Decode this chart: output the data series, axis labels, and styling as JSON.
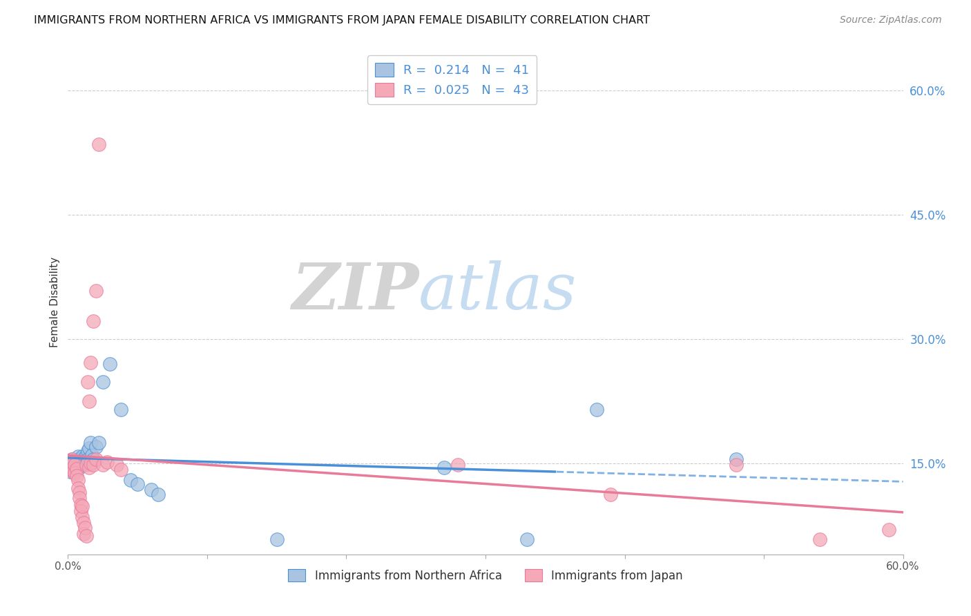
{
  "title": "IMMIGRANTS FROM NORTHERN AFRICA VS IMMIGRANTS FROM JAPAN FEMALE DISABILITY CORRELATION CHART",
  "source": "Source: ZipAtlas.com",
  "ylabel": "Female Disability",
  "right_yticks": [
    "60.0%",
    "45.0%",
    "30.0%",
    "15.0%"
  ],
  "right_ytick_vals": [
    0.6,
    0.45,
    0.3,
    0.15
  ],
  "xmin": 0.0,
  "xmax": 0.6,
  "ymin": 0.04,
  "ymax": 0.65,
  "legend_r_blue": "R =  0.214",
  "legend_n_blue": "N =  41",
  "legend_r_pink": "R =  0.025",
  "legend_n_pink": "N =  43",
  "legend_label_blue": "Immigrants from Northern Africa",
  "legend_label_pink": "Immigrants from Japan",
  "blue_scatter": [
    [
      0.001,
      0.145
    ],
    [
      0.002,
      0.15
    ],
    [
      0.002,
      0.14
    ],
    [
      0.003,
      0.148
    ],
    [
      0.003,
      0.155
    ],
    [
      0.004,
      0.143
    ],
    [
      0.004,
      0.15
    ],
    [
      0.005,
      0.147
    ],
    [
      0.005,
      0.14
    ],
    [
      0.006,
      0.152
    ],
    [
      0.006,
      0.145
    ],
    [
      0.007,
      0.148
    ],
    [
      0.007,
      0.158
    ],
    [
      0.008,
      0.155
    ],
    [
      0.008,
      0.145
    ],
    [
      0.009,
      0.152
    ],
    [
      0.01,
      0.158
    ],
    [
      0.01,
      0.148
    ],
    [
      0.011,
      0.155
    ],
    [
      0.012,
      0.15
    ],
    [
      0.013,
      0.16
    ],
    [
      0.014,
      0.165
    ],
    [
      0.014,
      0.155
    ],
    [
      0.015,
      0.168
    ],
    [
      0.016,
      0.175
    ],
    [
      0.017,
      0.16
    ],
    [
      0.018,
      0.155
    ],
    [
      0.02,
      0.17
    ],
    [
      0.022,
      0.175
    ],
    [
      0.025,
      0.248
    ],
    [
      0.03,
      0.27
    ],
    [
      0.038,
      0.215
    ],
    [
      0.045,
      0.13
    ],
    [
      0.05,
      0.125
    ],
    [
      0.06,
      0.118
    ],
    [
      0.065,
      0.112
    ],
    [
      0.15,
      0.058
    ],
    [
      0.27,
      0.145
    ],
    [
      0.38,
      0.215
    ],
    [
      0.48,
      0.155
    ],
    [
      0.33,
      0.058
    ]
  ],
  "pink_scatter": [
    [
      0.001,
      0.148
    ],
    [
      0.002,
      0.152
    ],
    [
      0.002,
      0.142
    ],
    [
      0.003,
      0.148
    ],
    [
      0.003,
      0.155
    ],
    [
      0.004,
      0.145
    ],
    [
      0.004,
      0.14
    ],
    [
      0.005,
      0.148
    ],
    [
      0.005,
      0.138
    ],
    [
      0.006,
      0.143
    ],
    [
      0.006,
      0.135
    ],
    [
      0.007,
      0.13
    ],
    [
      0.007,
      0.12
    ],
    [
      0.008,
      0.115
    ],
    [
      0.008,
      0.108
    ],
    [
      0.009,
      0.1
    ],
    [
      0.009,
      0.092
    ],
    [
      0.01,
      0.085
    ],
    [
      0.01,
      0.098
    ],
    [
      0.011,
      0.078
    ],
    [
      0.011,
      0.065
    ],
    [
      0.012,
      0.072
    ],
    [
      0.013,
      0.062
    ],
    [
      0.014,
      0.248
    ],
    [
      0.015,
      0.225
    ],
    [
      0.016,
      0.272
    ],
    [
      0.018,
      0.322
    ],
    [
      0.02,
      0.358
    ],
    [
      0.013,
      0.148
    ],
    [
      0.015,
      0.145
    ],
    [
      0.016,
      0.15
    ],
    [
      0.018,
      0.148
    ],
    [
      0.02,
      0.155
    ],
    [
      0.022,
      0.535
    ],
    [
      0.025,
      0.148
    ],
    [
      0.028,
      0.152
    ],
    [
      0.035,
      0.148
    ],
    [
      0.038,
      0.142
    ],
    [
      0.28,
      0.148
    ],
    [
      0.39,
      0.112
    ],
    [
      0.54,
      0.058
    ],
    [
      0.59,
      0.07
    ],
    [
      0.48,
      0.148
    ]
  ],
  "blue_color": "#a8c4e0",
  "pink_color": "#f4a8b8",
  "blue_line_color": "#4a90d9",
  "pink_line_color": "#e87a9a",
  "watermark_zip": "ZIP",
  "watermark_atlas": "atlas",
  "background_color": "#ffffff",
  "grid_color": "#cccccc"
}
